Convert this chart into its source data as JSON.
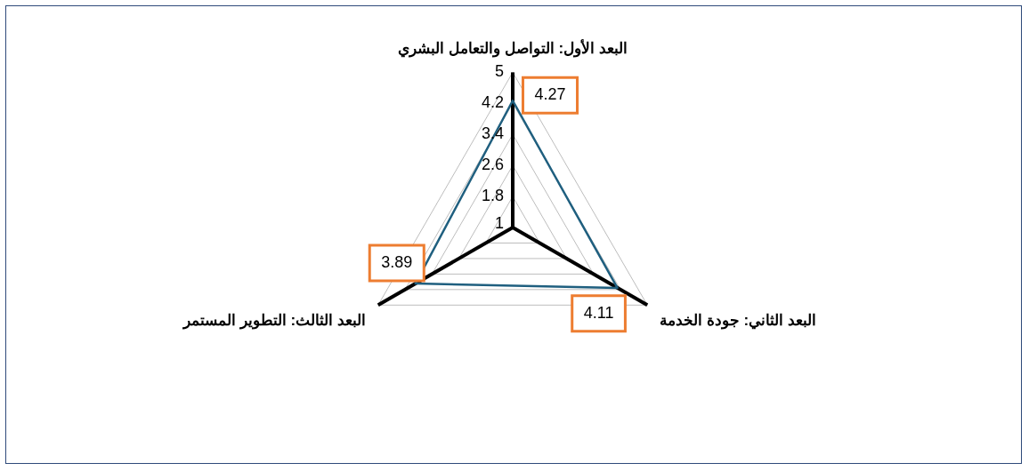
{
  "chart_data": {
    "type": "radar",
    "categories": [
      "البعد الأول: التواصل والتعامل البشري",
      "البعد الثاني: جودة الخدمة",
      "البعد الثالث: التطوير المستمر"
    ],
    "series": [
      {
        "color": "#1f5f7f",
        "values": [
          4.27,
          4.11,
          3.89
        ]
      }
    ],
    "ylim": [
      1,
      5
    ],
    "yticks": [
      1,
      1.8,
      2.6,
      3.4,
      4.2,
      5
    ],
    "grid": true,
    "legend": false,
    "marker": "none",
    "data_labels": true
  }
}
